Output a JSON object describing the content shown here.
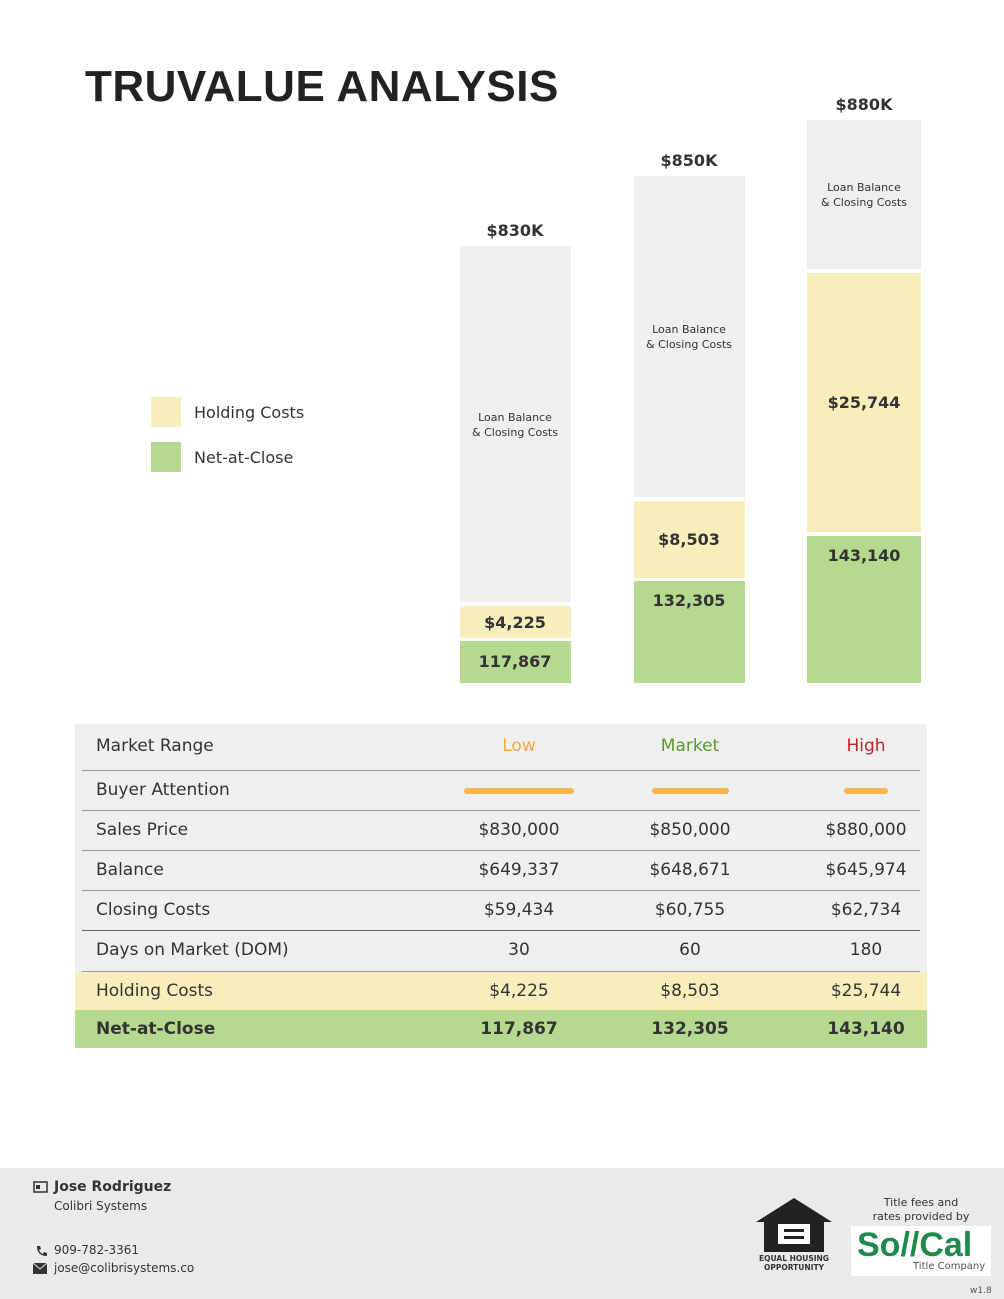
{
  "title": "TRUVALUE ANALYSIS",
  "legend": [
    "Holding Costs",
    "Net-at-Close"
  ],
  "bars": [
    {
      "total": "$830K",
      "top_lines": [
        "Loan Balance",
        "& Closing Costs"
      ],
      "holding": "$4,225",
      "net": "117,867"
    },
    {
      "total": "$850K",
      "top_lines": [
        "Loan Balance",
        "& Closing Costs"
      ],
      "holding": "$8,503",
      "net": "132,305"
    },
    {
      "total": "$880K",
      "top_lines": [
        "Loan Balance",
        "& Closing Costs"
      ],
      "holding": "$25,744",
      "net": "143,140"
    }
  ],
  "table": {
    "header": [
      "Market Range",
      "Low",
      "Market",
      "High"
    ],
    "attention_label": "Buyer Attention",
    "rows": [
      [
        "Sales Price",
        "$830,000",
        "$850,000",
        "$880,000"
      ],
      [
        "Balance",
        "$649,337",
        "$648,671",
        "$645,974"
      ],
      [
        "Closing Costs",
        "$59,434",
        "$60,755",
        "$62,734"
      ],
      [
        "Days on Market (DOM)",
        "30",
        "60",
        "180"
      ],
      [
        "Holding Costs",
        "$4,225",
        "$8,503",
        "$25,744"
      ],
      [
        "Net-at-Close",
        "117,867",
        "132,305",
        "143,140"
      ]
    ]
  },
  "footer": {
    "name": "Jose Rodriguez",
    "company": "Colibri Systems",
    "phone": "909-782-3361",
    "email": "jose@colibrisystems.co",
    "equal_housing": [
      "EQUAL HOUSING",
      "OPPORTUNITY"
    ],
    "provided_by": [
      "Title fees and",
      "rates provided by"
    ],
    "logo": "So//Cal",
    "logo_sub": "Title Company",
    "version": "w1.8"
  }
}
